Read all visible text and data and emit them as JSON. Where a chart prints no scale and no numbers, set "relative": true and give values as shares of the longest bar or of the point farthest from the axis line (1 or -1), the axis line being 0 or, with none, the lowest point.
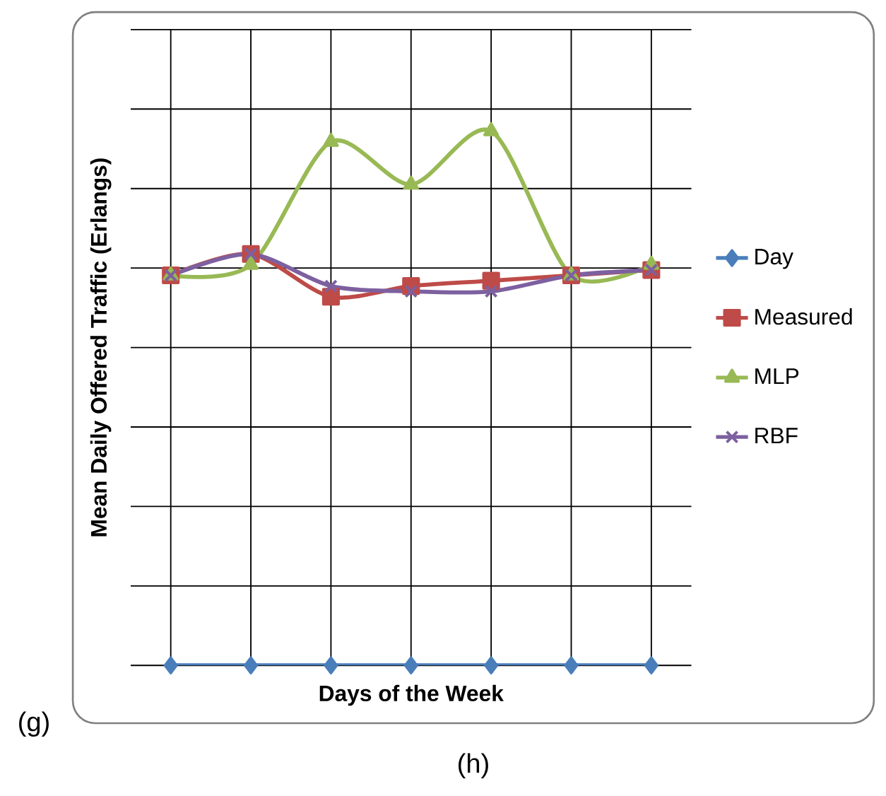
{
  "chart_data": {
    "type": "line",
    "relative": true,
    "xlabel": "Days of the Week",
    "ylabel": "Mean Daily Offered Traffic (Erlangs)",
    "categories": [
      null,
      null,
      null,
      null,
      null,
      null,
      null
    ],
    "series": [
      {
        "name": "Day",
        "color": "#4a7ebb",
        "marker": "diamond",
        "values": [
          0,
          0,
          0,
          0,
          0,
          0,
          0
        ]
      },
      {
        "name": "Measured",
        "color": "#be4b48",
        "marker": "square",
        "values": [
          0.73,
          0.77,
          0.69,
          0.71,
          0.72,
          0.73,
          0.74
        ]
      },
      {
        "name": "MLP",
        "color": "#98b954",
        "marker": "triangle",
        "values": [
          0.73,
          0.75,
          0.98,
          0.9,
          1.0,
          0.73,
          0.75
        ]
      },
      {
        "name": "RBF",
        "color": "#7d60a0",
        "marker": "cross",
        "values": [
          0.73,
          0.77,
          0.71,
          0.7,
          0.7,
          0.73,
          0.74
        ]
      }
    ],
    "grid": true,
    "legend": "right",
    "annotations": [
      "(g)",
      "(h)"
    ]
  }
}
